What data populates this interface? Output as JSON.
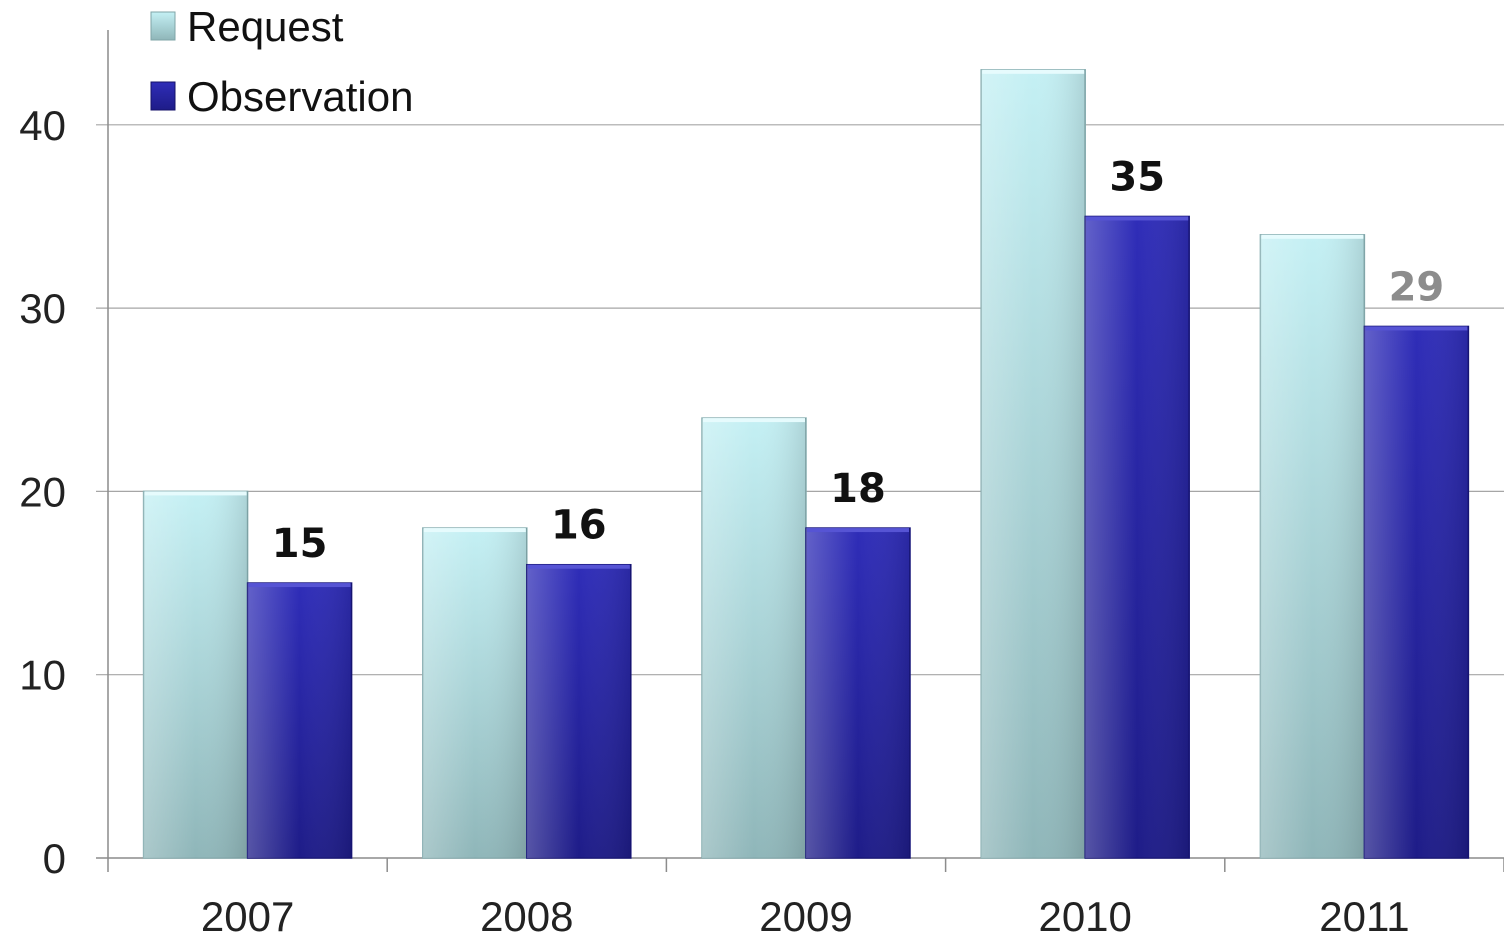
{
  "chart_data": {
    "type": "bar",
    "categories": [
      "2007",
      "2008",
      "2009",
      "2010",
      "2011"
    ],
    "series": [
      {
        "name": "Request",
        "values": [
          20,
          18,
          24,
          43,
          34
        ],
        "color": "#b9e6ec"
      },
      {
        "name": "Observation",
        "values": [
          15,
          16,
          18,
          35,
          29
        ],
        "color": "#2a28a8"
      }
    ],
    "data_labels": {
      "series": "Observation",
      "values": [
        "15",
        "16",
        "18",
        "35",
        "29"
      ],
      "colors": [
        "#111111",
        "#111111",
        "#111111",
        "#111111",
        "#8c8c8c"
      ]
    },
    "title": "",
    "xlabel": "",
    "ylabel": "",
    "ylim": [
      0,
      45
    ],
    "yticks": [
      "0",
      "10",
      "20",
      "30",
      "40"
    ],
    "grid": true,
    "legend": "top-left"
  }
}
